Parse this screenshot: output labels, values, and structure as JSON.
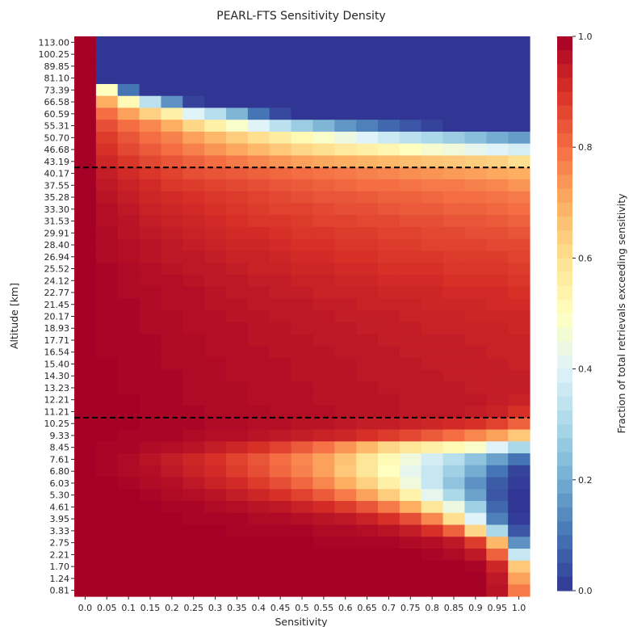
{
  "chart_data": {
    "type": "heatmap",
    "title": "PEARL-FTS Sensitivity Density",
    "xlabel": "Sensitivity",
    "ylabel": "Altitude [km]",
    "colorbar_label": "Fraction of total retrievals exceeding sensitivity",
    "colormap": "RdYlBu_r",
    "vmin": 0.0,
    "vmax": 1.0,
    "colorbar_ticks": [
      "0.0",
      "0.2",
      "0.4",
      "0.6",
      "0.8",
      "1.0"
    ],
    "x_categories": [
      "0.0",
      "0.05",
      "0.1",
      "0.15",
      "0.2",
      "0.25",
      "0.3",
      "0.35",
      "0.4",
      "0.45",
      "0.5",
      "0.55",
      "0.6",
      "0.65",
      "0.7",
      "0.75",
      "0.8",
      "0.85",
      "0.9",
      "0.95",
      "1.0"
    ],
    "y_categories": [
      "113.00",
      "100.25",
      "89.85",
      "81.10",
      "73.39",
      "66.58",
      "60.59",
      "55.31",
      "50.70",
      "46.68",
      "43.19",
      "40.17",
      "37.55",
      "35.28",
      "33.30",
      "31.53",
      "29.91",
      "28.40",
      "26.94",
      "25.52",
      "24.12",
      "22.77",
      "21.45",
      "20.17",
      "18.93",
      "17.71",
      "16.54",
      "15.40",
      "14.30",
      "13.23",
      "12.21",
      "11.21",
      "10.25",
      "9.33",
      "8.45",
      "7.61",
      "6.80",
      "6.03",
      "5.30",
      "4.61",
      "3.95",
      "3.33",
      "2.75",
      "2.21",
      "1.70",
      "1.24",
      "0.81"
    ],
    "hlines": [
      "40.17",
      "10.25"
    ],
    "values": [
      [
        1,
        0,
        0,
        0,
        0,
        0,
        0,
        0,
        0,
        0,
        0,
        0,
        0,
        0,
        0,
        0,
        0,
        0,
        0,
        0,
        0
      ],
      [
        1,
        0,
        0,
        0,
        0,
        0,
        0,
        0,
        0,
        0,
        0,
        0,
        0,
        0,
        0,
        0,
        0,
        0,
        0,
        0,
        0
      ],
      [
        1,
        0,
        0,
        0,
        0,
        0,
        0,
        0,
        0,
        0,
        0,
        0,
        0,
        0,
        0,
        0,
        0,
        0,
        0,
        0,
        0
      ],
      [
        1,
        0,
        0,
        0,
        0,
        0,
        0,
        0,
        0,
        0,
        0,
        0,
        0,
        0,
        0,
        0,
        0,
        0,
        0,
        0,
        0
      ],
      [
        1,
        0.5,
        0.1,
        0,
        0,
        0,
        0,
        0,
        0,
        0,
        0,
        0,
        0,
        0,
        0,
        0,
        0,
        0,
        0,
        0,
        0
      ],
      [
        1,
        0.7,
        0.52,
        0.33,
        0.15,
        0.02,
        0,
        0,
        0,
        0,
        0,
        0,
        0,
        0,
        0,
        0,
        0,
        0,
        0,
        0,
        0
      ],
      [
        1,
        0.8,
        0.72,
        0.63,
        0.55,
        0.4,
        0.32,
        0.22,
        0.1,
        0.03,
        0,
        0,
        0,
        0,
        0,
        0,
        0,
        0,
        0,
        0,
        0
      ],
      [
        1,
        0.85,
        0.8,
        0.76,
        0.7,
        0.62,
        0.55,
        0.48,
        0.4,
        0.33,
        0.27,
        0.22,
        0.16,
        0.12,
        0.08,
        0.05,
        0.02,
        0,
        0,
        0,
        0
      ],
      [
        1,
        0.88,
        0.84,
        0.8,
        0.77,
        0.72,
        0.68,
        0.64,
        0.6,
        0.56,
        0.52,
        0.48,
        0.44,
        0.4,
        0.36,
        0.33,
        0.3,
        0.27,
        0.24,
        0.2,
        0.17
      ],
      [
        1,
        0.9,
        0.86,
        0.83,
        0.8,
        0.77,
        0.74,
        0.71,
        0.68,
        0.65,
        0.62,
        0.6,
        0.57,
        0.55,
        0.53,
        0.5,
        0.47,
        0.45,
        0.42,
        0.4,
        0.38
      ],
      [
        1,
        0.92,
        0.89,
        0.86,
        0.84,
        0.82,
        0.8,
        0.78,
        0.76,
        0.74,
        0.72,
        0.71,
        0.7,
        0.69,
        0.68,
        0.67,
        0.66,
        0.65,
        0.64,
        0.63,
        0.6
      ],
      [
        1,
        0.94,
        0.91,
        0.89,
        0.87,
        0.85,
        0.84,
        0.83,
        0.82,
        0.81,
        0.8,
        0.79,
        0.78,
        0.77,
        0.76,
        0.75,
        0.74,
        0.73,
        0.72,
        0.71,
        0.7
      ],
      [
        1,
        0.95,
        0.93,
        0.91,
        0.89,
        0.88,
        0.87,
        0.86,
        0.85,
        0.84,
        0.83,
        0.82,
        0.81,
        0.8,
        0.8,
        0.79,
        0.78,
        0.78,
        0.77,
        0.76,
        0.74
      ],
      [
        1,
        0.96,
        0.94,
        0.92,
        0.91,
        0.9,
        0.89,
        0.88,
        0.87,
        0.86,
        0.85,
        0.84,
        0.84,
        0.83,
        0.82,
        0.82,
        0.81,
        0.8,
        0.8,
        0.79,
        0.78
      ],
      [
        1,
        0.97,
        0.95,
        0.93,
        0.92,
        0.91,
        0.9,
        0.89,
        0.88,
        0.87,
        0.87,
        0.86,
        0.85,
        0.85,
        0.84,
        0.83,
        0.83,
        0.82,
        0.82,
        0.81,
        0.8
      ],
      [
        1,
        0.97,
        0.96,
        0.94,
        0.93,
        0.92,
        0.91,
        0.9,
        0.89,
        0.89,
        0.88,
        0.87,
        0.87,
        0.86,
        0.86,
        0.85,
        0.85,
        0.84,
        0.84,
        0.83,
        0.82
      ],
      [
        1,
        0.98,
        0.96,
        0.95,
        0.94,
        0.93,
        0.92,
        0.91,
        0.91,
        0.9,
        0.89,
        0.89,
        0.88,
        0.88,
        0.87,
        0.87,
        0.86,
        0.86,
        0.85,
        0.85,
        0.84
      ],
      [
        1,
        0.98,
        0.97,
        0.96,
        0.95,
        0.94,
        0.93,
        0.92,
        0.92,
        0.91,
        0.9,
        0.9,
        0.89,
        0.89,
        0.88,
        0.88,
        0.87,
        0.87,
        0.87,
        0.86,
        0.86
      ],
      [
        1,
        0.98,
        0.97,
        0.96,
        0.95,
        0.95,
        0.94,
        0.93,
        0.93,
        0.92,
        0.91,
        0.91,
        0.9,
        0.9,
        0.89,
        0.89,
        0.89,
        0.88,
        0.88,
        0.88,
        0.87
      ],
      [
        1,
        0.99,
        0.98,
        0.97,
        0.96,
        0.95,
        0.95,
        0.94,
        0.93,
        0.93,
        0.92,
        0.92,
        0.91,
        0.91,
        0.9,
        0.9,
        0.9,
        0.89,
        0.89,
        0.89,
        0.88
      ],
      [
        1,
        0.99,
        0.98,
        0.97,
        0.97,
        0.96,
        0.95,
        0.95,
        0.94,
        0.94,
        0.93,
        0.93,
        0.92,
        0.92,
        0.91,
        0.91,
        0.91,
        0.9,
        0.9,
        0.9,
        0.89
      ],
      [
        1,
        0.99,
        0.98,
        0.98,
        0.97,
        0.97,
        0.96,
        0.95,
        0.95,
        0.94,
        0.94,
        0.93,
        0.93,
        0.93,
        0.92,
        0.92,
        0.92,
        0.91,
        0.91,
        0.91,
        0.9
      ],
      [
        1,
        0.99,
        0.99,
        0.98,
        0.97,
        0.97,
        0.96,
        0.96,
        0.95,
        0.95,
        0.95,
        0.94,
        0.94,
        0.93,
        0.93,
        0.93,
        0.92,
        0.92,
        0.92,
        0.91,
        0.91
      ],
      [
        1,
        0.99,
        0.99,
        0.98,
        0.98,
        0.97,
        0.97,
        0.96,
        0.96,
        0.95,
        0.95,
        0.95,
        0.94,
        0.94,
        0.94,
        0.93,
        0.93,
        0.93,
        0.92,
        0.92,
        0.92
      ],
      [
        1,
        0.99,
        0.99,
        0.98,
        0.98,
        0.97,
        0.97,
        0.97,
        0.96,
        0.96,
        0.95,
        0.95,
        0.95,
        0.94,
        0.94,
        0.94,
        0.93,
        0.93,
        0.93,
        0.93,
        0.92
      ],
      [
        1,
        0.99,
        0.99,
        0.99,
        0.98,
        0.98,
        0.97,
        0.97,
        0.96,
        0.96,
        0.96,
        0.95,
        0.95,
        0.95,
        0.94,
        0.94,
        0.94,
        0.94,
        0.93,
        0.93,
        0.93
      ],
      [
        1,
        0.99,
        0.99,
        0.99,
        0.98,
        0.98,
        0.97,
        0.97,
        0.97,
        0.96,
        0.96,
        0.96,
        0.95,
        0.95,
        0.95,
        0.94,
        0.94,
        0.94,
        0.94,
        0.93,
        0.93
      ],
      [
        1,
        1,
        0.99,
        0.99,
        0.98,
        0.98,
        0.98,
        0.97,
        0.97,
        0.97,
        0.96,
        0.96,
        0.96,
        0.95,
        0.95,
        0.95,
        0.94,
        0.94,
        0.94,
        0.94,
        0.93
      ],
      [
        1,
        1,
        0.99,
        0.99,
        0.99,
        0.98,
        0.98,
        0.97,
        0.97,
        0.97,
        0.96,
        0.96,
        0.96,
        0.95,
        0.95,
        0.95,
        0.95,
        0.94,
        0.94,
        0.94,
        0.94
      ],
      [
        1,
        1,
        0.99,
        0.99,
        0.99,
        0.98,
        0.98,
        0.98,
        0.97,
        0.97,
        0.97,
        0.96,
        0.96,
        0.96,
        0.95,
        0.95,
        0.95,
        0.95,
        0.94,
        0.94,
        0.94
      ],
      [
        1,
        1,
        1,
        0.99,
        0.99,
        0.98,
        0.98,
        0.98,
        0.97,
        0.97,
        0.97,
        0.96,
        0.96,
        0.96,
        0.96,
        0.95,
        0.95,
        0.95,
        0.95,
        0.94,
        0.93
      ],
      [
        1,
        1,
        1,
        0.99,
        0.99,
        0.99,
        0.98,
        0.98,
        0.98,
        0.97,
        0.97,
        0.97,
        0.96,
        0.96,
        0.96,
        0.95,
        0.95,
        0.95,
        0.94,
        0.93,
        0.9
      ],
      [
        1,
        1,
        1,
        0.99,
        0.99,
        0.99,
        0.98,
        0.98,
        0.97,
        0.97,
        0.96,
        0.96,
        0.95,
        0.94,
        0.94,
        0.93,
        0.92,
        0.91,
        0.9,
        0.87,
        0.82
      ],
      [
        1,
        1,
        0.99,
        0.99,
        0.99,
        0.98,
        0.97,
        0.97,
        0.96,
        0.95,
        0.94,
        0.93,
        0.92,
        0.9,
        0.88,
        0.86,
        0.83,
        0.8,
        0.76,
        0.72,
        0.65
      ],
      [
        1,
        0.99,
        0.99,
        0.98,
        0.97,
        0.96,
        0.94,
        0.92,
        0.9,
        0.87,
        0.83,
        0.79,
        0.74,
        0.68,
        0.62,
        0.58,
        0.55,
        0.52,
        0.48,
        0.4,
        0.3
      ],
      [
        1,
        0.99,
        0.98,
        0.96,
        0.94,
        0.92,
        0.9,
        0.87,
        0.84,
        0.8,
        0.76,
        0.72,
        0.66,
        0.58,
        0.52,
        0.45,
        0.38,
        0.32,
        0.25,
        0.18,
        0.1
      ],
      [
        1,
        0.99,
        0.98,
        0.97,
        0.95,
        0.93,
        0.91,
        0.88,
        0.85,
        0.81,
        0.77,
        0.72,
        0.65,
        0.58,
        0.5,
        0.42,
        0.35,
        0.28,
        0.2,
        0.1,
        0.02
      ],
      [
        1,
        1,
        0.99,
        0.98,
        0.97,
        0.95,
        0.93,
        0.91,
        0.88,
        0.85,
        0.81,
        0.76,
        0.7,
        0.63,
        0.55,
        0.45,
        0.35,
        0.25,
        0.15,
        0.06,
        0.01
      ],
      [
        1,
        1,
        1,
        0.99,
        0.98,
        0.97,
        0.96,
        0.94,
        0.92,
        0.9,
        0.87,
        0.83,
        0.78,
        0.72,
        0.64,
        0.54,
        0.42,
        0.3,
        0.18,
        0.05,
        0
      ],
      [
        1,
        1,
        1,
        1,
        0.99,
        0.99,
        0.98,
        0.97,
        0.96,
        0.95,
        0.93,
        0.91,
        0.88,
        0.84,
        0.78,
        0.7,
        0.58,
        0.44,
        0.28,
        0.08,
        0
      ],
      [
        1,
        1,
        1,
        1,
        1,
        0.99,
        0.99,
        0.99,
        0.98,
        0.98,
        0.97,
        0.96,
        0.95,
        0.93,
        0.9,
        0.85,
        0.76,
        0.6,
        0.4,
        0.12,
        0.01
      ],
      [
        1,
        1,
        1,
        1,
        1,
        1,
        1,
        0.99,
        0.99,
        0.99,
        0.99,
        0.98,
        0.98,
        0.97,
        0.96,
        0.94,
        0.9,
        0.82,
        0.62,
        0.3,
        0.05
      ],
      [
        1,
        1,
        1,
        1,
        1,
        1,
        1,
        1,
        1,
        1,
        1,
        0.99,
        0.99,
        0.99,
        0.99,
        0.98,
        0.97,
        0.95,
        0.88,
        0.68,
        0.15
      ],
      [
        1,
        1,
        1,
        1,
        1,
        1,
        1,
        1,
        1,
        1,
        1,
        1,
        1,
        1,
        1,
        1,
        0.99,
        0.98,
        0.95,
        0.82,
        0.35
      ],
      [
        1,
        1,
        1,
        1,
        1,
        1,
        1,
        1,
        1,
        1,
        1,
        1,
        1,
        1,
        1,
        1,
        1,
        1,
        0.99,
        0.92,
        0.65
      ],
      [
        1,
        1,
        1,
        1,
        1,
        1,
        1,
        1,
        1,
        1,
        1,
        1,
        1,
        1,
        1,
        1,
        1,
        1,
        1,
        0.95,
        0.72
      ],
      [
        1,
        1,
        1,
        1,
        1,
        1,
        1,
        1,
        1,
        1,
        1,
        1,
        1,
        1,
        1,
        1,
        1,
        1,
        1,
        0.96,
        0.78
      ]
    ]
  }
}
